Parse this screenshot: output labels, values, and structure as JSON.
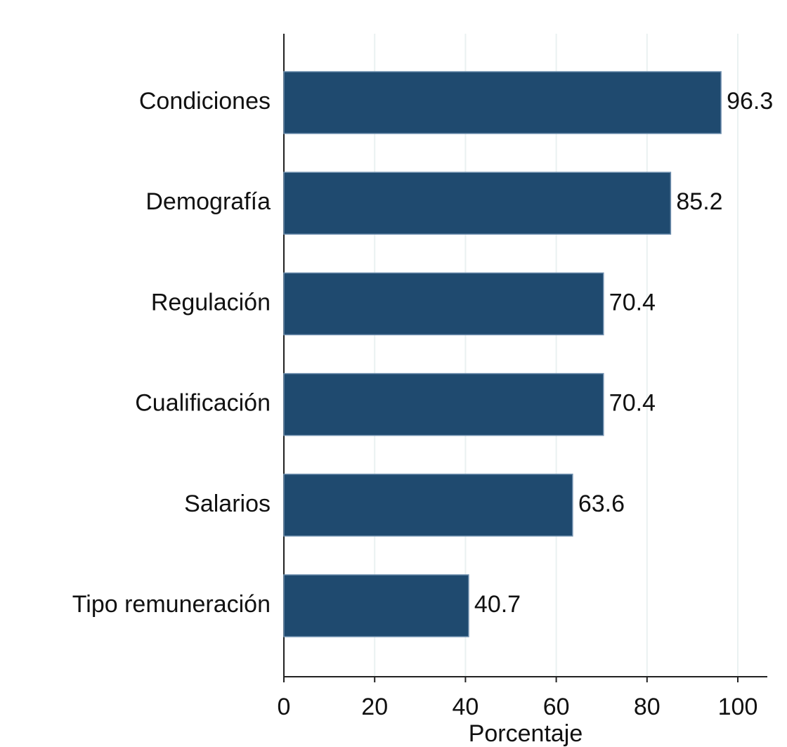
{
  "chart_data": {
    "type": "barh",
    "categories": [
      "Condiciones",
      "Demografía",
      "Regulación",
      "Cualificación",
      "Salarios",
      "Tipo remuneración"
    ],
    "values": [
      96.3,
      85.2,
      70.4,
      70.4,
      63.6,
      40.7
    ],
    "color": "#1f4a6f",
    "xlabel": "Porcentaje",
    "xlim": [
      0,
      106.5
    ],
    "xticks": [
      0,
      20,
      40,
      60,
      80,
      100
    ],
    "grid": true
  }
}
